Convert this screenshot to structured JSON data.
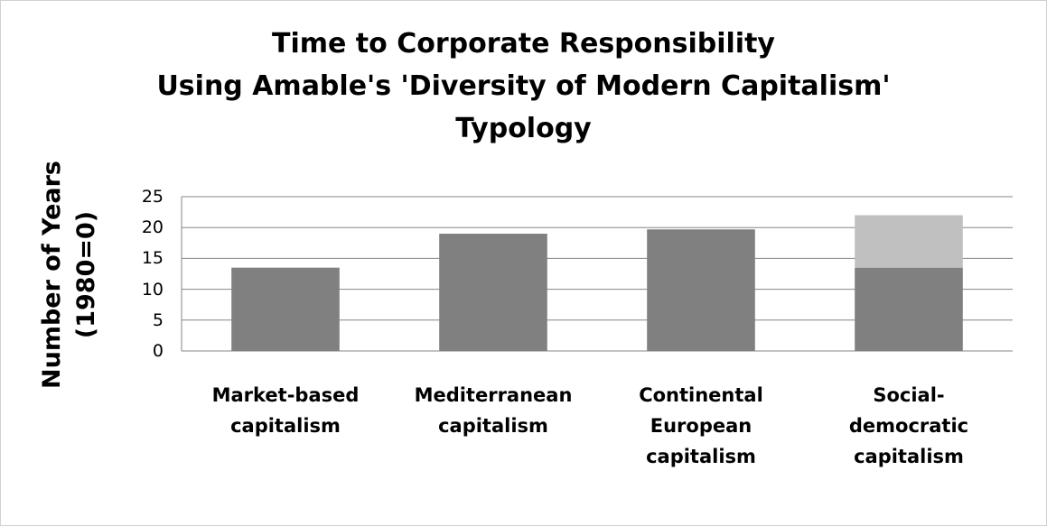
{
  "chart_data": {
    "type": "stacked-bar",
    "title": [
      "Time to Corporate Responsibility",
      "Using Amable's 'Diversity of Modern Capitalism'",
      "Typology"
    ],
    "y_label": [
      "Number of Years",
      "(1980=0)"
    ],
    "categories": [
      "Market-based capitalism",
      "Mediterranean capitalism",
      "Continental European capitalism",
      "Social-democratic capitalism"
    ],
    "series": [
      {
        "color": "#808080",
        "values": [
          13.5,
          19,
          19.7,
          13.5
        ]
      },
      {
        "color": "#c0c0c0",
        "values": [
          null,
          null,
          null,
          8.5
        ]
      }
    ],
    "ylim": [
      0,
      25
    ],
    "yticks": [
      0,
      5,
      10,
      15,
      20,
      25
    ],
    "grid": true
  }
}
